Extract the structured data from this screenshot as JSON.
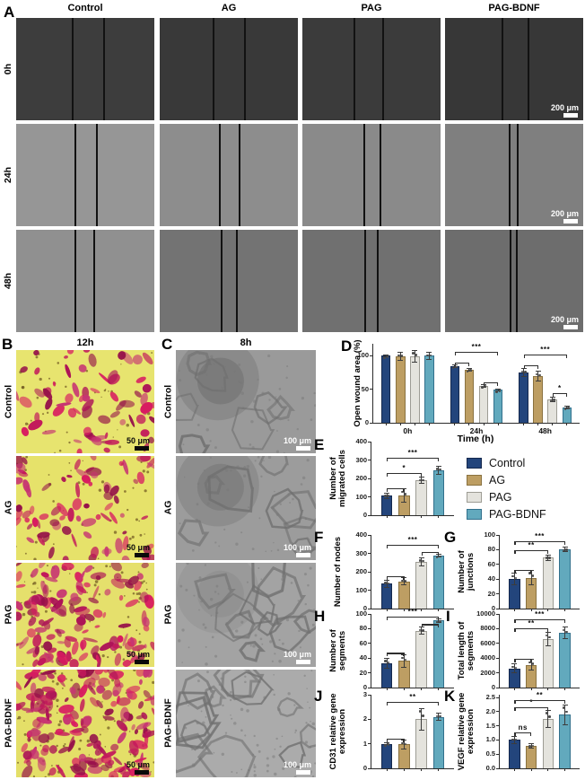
{
  "letters": {
    "A": "A",
    "B": "B",
    "C": "C",
    "D": "D",
    "E": "E",
    "F": "F",
    "G": "G",
    "H": "H",
    "I": "I",
    "J": "J",
    "K": "K"
  },
  "panelA": {
    "col_headers": [
      "Control",
      "AG",
      "PAG",
      "PAG-BDNF"
    ],
    "row_labels": [
      "0h",
      "24h",
      "48h"
    ],
    "scale_label": "200 μm"
  },
  "panelB": {
    "header": "12h",
    "row_labels": [
      "Control",
      "AG",
      "PAG",
      "PAG-BDNF"
    ],
    "scale_label": "50 μm"
  },
  "panelC": {
    "header": "8h",
    "row_labels": [
      "Control",
      "AG",
      "PAG",
      "PAG-BDNF"
    ],
    "scale_label": "100 μm"
  },
  "legend": {
    "entries": [
      {
        "label": "Control",
        "color": "#23457c",
        "border": "#14284d"
      },
      {
        "label": "AG",
        "color": "#bd9e63",
        "border": "#8a7240"
      },
      {
        "label": "PAG",
        "color": "#e4e3dd",
        "border": "#9d9c94"
      },
      {
        "label": "PAG-BDNF",
        "color": "#62a9bd",
        "border": "#32708c"
      }
    ]
  },
  "colors": {
    "axis": "#2b2b2b",
    "error_bar": "#3c3c3c"
  },
  "chart_data": [
    {
      "panel": "D",
      "type": "bar",
      "grouped": true,
      "title": "",
      "ylabel": "Open wound area (%)",
      "xlabel": "Time (h)",
      "categories": [
        "0h",
        "24h",
        "48h"
      ],
      "group_names": [
        "Control",
        "AG",
        "PAG",
        "PAG-BDNF"
      ],
      "values": [
        [
          100,
          99,
          99,
          100
        ],
        [
          84,
          79,
          55,
          49
        ],
        [
          75,
          70,
          35,
          23
        ]
      ],
      "errs": [
        [
          1,
          6,
          9,
          5
        ],
        [
          2,
          2,
          2,
          1.5
        ],
        [
          6,
          7,
          3,
          2
        ]
      ],
      "ylim": [
        0,
        118
      ],
      "yticks": [
        0,
        50,
        100
      ],
      "ytick_labels": [
        "0",
        "50",
        "100"
      ],
      "brackets": [
        {
          "c": 1,
          "i1": 0,
          "i2": 1,
          "y": 90,
          "label": ""
        },
        {
          "c": 1,
          "i1": 2,
          "i2": 3,
          "y": 60,
          "label": ""
        },
        {
          "c": 1,
          "i1": 0,
          "i2": 3,
          "y": 106,
          "label": "***"
        },
        {
          "c": 2,
          "i1": 0,
          "i2": 1,
          "y": 86,
          "label": ""
        },
        {
          "c": 2,
          "i1": 0,
          "i2": 3,
          "y": 102,
          "label": "***"
        },
        {
          "c": 2,
          "i1": 2,
          "i2": 3,
          "y": 44,
          "label": "*"
        }
      ]
    },
    {
      "panel": "E",
      "type": "bar",
      "grouped": false,
      "ylabel": "Number of migrated cells",
      "xlabel": "",
      "categories": [],
      "group_names": [
        "Control",
        "AG",
        "PAG",
        "PAG-BDNF"
      ],
      "values": [
        [
          105,
          107,
          190,
          245
        ]
      ],
      "errs": [
        [
          15,
          35,
          15,
          22
        ]
      ],
      "ylim": [
        0,
        400
      ],
      "yticks": [
        0,
        100,
        200,
        300,
        400
      ],
      "ytick_labels": [
        "0",
        "100",
        "200",
        "300",
        "400"
      ],
      "brackets": [
        {
          "c": 0,
          "i1": 0,
          "i2": 1,
          "y": 148,
          "label": ""
        },
        {
          "c": 0,
          "i1": 0,
          "i2": 2,
          "y": 228,
          "label": "*"
        },
        {
          "c": 0,
          "i1": 0,
          "i2": 3,
          "y": 312,
          "label": "***"
        }
      ]
    },
    {
      "panel": "F",
      "type": "bar",
      "grouped": false,
      "ylabel": "Number of nodes",
      "xlabel": "",
      "categories": [],
      "group_names": [
        "Control",
        "AG",
        "PAG",
        "PAG-BDNF"
      ],
      "values": [
        [
          135,
          147,
          255,
          287
        ]
      ],
      "errs": [
        [
          20,
          20,
          22,
          6
        ]
      ],
      "ylim": [
        0,
        400
      ],
      "yticks": [
        0,
        100,
        200,
        300,
        400
      ],
      "ytick_labels": [
        "0",
        "100",
        "200",
        "300",
        "400"
      ],
      "brackets": [
        {
          "c": 0,
          "i1": 0,
          "i2": 1,
          "y": 178,
          "label": ""
        },
        {
          "c": 0,
          "i1": 2,
          "i2": 3,
          "y": 308,
          "label": ""
        },
        {
          "c": 0,
          "i1": 0,
          "i2": 3,
          "y": 345,
          "label": "***"
        }
      ]
    },
    {
      "panel": "G",
      "type": "bar",
      "grouped": false,
      "ylabel": "Number of junctions",
      "xlabel": "",
      "categories": [],
      "group_names": [
        "Control",
        "AG",
        "PAG",
        "PAG-BDNF"
      ],
      "values": [
        [
          40,
          42,
          69,
          80
        ]
      ],
      "errs": [
        [
          8,
          10,
          4,
          3
        ]
      ],
      "ylim": [
        0,
        100
      ],
      "yticks": [
        0,
        20,
        40,
        60,
        80,
        100
      ],
      "ytick_labels": [
        "0",
        "20",
        "40",
        "60",
        "80",
        "100"
      ],
      "brackets": [
        {
          "c": 0,
          "i1": 0,
          "i2": 1,
          "y": 53,
          "label": ""
        },
        {
          "c": 0,
          "i1": 0,
          "i2": 2,
          "y": 79,
          "label": "**"
        },
        {
          "c": 0,
          "i1": 0,
          "i2": 3,
          "y": 92,
          "label": "***"
        }
      ]
    },
    {
      "panel": "H",
      "type": "bar",
      "grouped": false,
      "ylabel": "Number of segments",
      "xlabel": "",
      "categories": [],
      "group_names": [
        "Control",
        "AG",
        "PAG",
        "PAG-BDNF"
      ],
      "values": [
        [
          33,
          36,
          77,
          91
        ]
      ],
      "errs": [
        [
          7,
          8,
          5,
          2
        ]
      ],
      "ylim": [
        0,
        100
      ],
      "yticks": [
        0,
        20,
        40,
        60,
        80,
        100
      ],
      "ytick_labels": [
        "0",
        "20",
        "40",
        "60",
        "80",
        "100"
      ],
      "brackets": [
        {
          "c": 0,
          "i1": 0,
          "i2": 1,
          "y": 47,
          "label": ""
        },
        {
          "c": 0,
          "i1": 2,
          "i2": 3,
          "y": 86,
          "label": ""
        },
        {
          "c": 0,
          "i1": 0,
          "i2": 3,
          "y": 96,
          "label": "***"
        }
      ]
    },
    {
      "panel": "I",
      "type": "bar",
      "grouped": false,
      "ylabel": "Total length of segments",
      "xlabel": "",
      "categories": [],
      "group_names": [
        "Control",
        "AG",
        "PAG",
        "PAG-BDNF"
      ],
      "values": [
        [
          2600,
          3100,
          6600,
          7400
        ]
      ],
      "errs": [
        [
          600,
          700,
          900,
          800
        ]
      ],
      "ylim": [
        0,
        10000
      ],
      "yticks": [
        0,
        2000,
        4000,
        6000,
        8000,
        10000
      ],
      "ytick_labels": [
        "0",
        "2000",
        "4000",
        "6000",
        "8000",
        "10000"
      ],
      "brackets": [
        {
          "c": 0,
          "i1": 0,
          "i2": 1,
          "y": 3900,
          "label": ""
        },
        {
          "c": 0,
          "i1": 0,
          "i2": 2,
          "y": 8100,
          "label": "**"
        },
        {
          "c": 0,
          "i1": 0,
          "i2": 3,
          "y": 9300,
          "label": "***"
        }
      ]
    },
    {
      "panel": "J",
      "type": "bar",
      "grouped": false,
      "ylabel": "CD31 relative gene expression",
      "xlabel": "",
      "categories": [],
      "group_names": [
        "Control",
        "AG",
        "PAG",
        "PAG-BDNF"
      ],
      "values": [
        [
          1.0,
          0.97,
          2.0,
          2.1
        ]
      ],
      "errs": [
        [
          0.04,
          0.18,
          0.45,
          0.15
        ]
      ],
      "ylim": [
        0,
        3
      ],
      "yticks": [
        0,
        1,
        2,
        3
      ],
      "ytick_labels": [
        "0",
        "1",
        "2",
        "3"
      ],
      "brackets": [
        {
          "c": 0,
          "i1": 0,
          "i2": 1,
          "y": 1.22,
          "label": ""
        },
        {
          "c": 0,
          "i1": 0,
          "i2": 3,
          "y": 2.72,
          "label": "**"
        }
      ]
    },
    {
      "panel": "K",
      "type": "bar",
      "grouped": false,
      "ylabel": "VEGF relative gene expression",
      "xlabel": "",
      "categories": [],
      "group_names": [
        "Control",
        "AG",
        "PAG",
        "PAG-BDNF"
      ],
      "values": [
        [
          1.0,
          0.8,
          1.75,
          1.9
        ]
      ],
      "errs": [
        [
          0.12,
          0.08,
          0.3,
          0.35
        ]
      ],
      "ylim": [
        0,
        2.6
      ],
      "yticks": [
        0,
        0.5,
        1,
        1.5,
        2,
        2.5
      ],
      "ytick_labels": [
        "0.0",
        "0.5",
        "1.0",
        "1.5",
        "2.0",
        "2.5"
      ],
      "brackets": [
        {
          "c": 0,
          "i1": 0,
          "i2": 1,
          "y": 1.28,
          "label": "ns"
        },
        {
          "c": 0,
          "i1": 0,
          "i2": 2,
          "y": 2.15,
          "label": "*"
        },
        {
          "c": 0,
          "i1": 0,
          "i2": 3,
          "y": 2.42,
          "label": "**"
        }
      ]
    }
  ]
}
